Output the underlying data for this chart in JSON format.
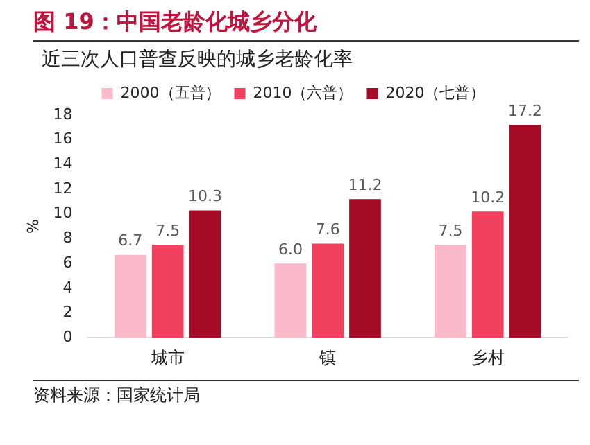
{
  "chart_data": {
    "type": "bar",
    "title": "图 19：中国老龄化城乡分化",
    "subtitle": "近三次人口普查反映的城乡老龄化率",
    "ylabel": "%",
    "categories": [
      "城市",
      "镇",
      "乡村"
    ],
    "series": [
      {
        "name": "2000（五普）",
        "color": "#f9b9c8",
        "values": [
          6.7,
          6.0,
          7.5
        ],
        "value_labels": [
          "6.7",
          "6.0",
          "7.5"
        ]
      },
      {
        "name": "2010（六普）",
        "color": "#f0405e",
        "values": [
          7.5,
          7.6,
          10.2
        ],
        "value_labels": [
          "7.5",
          "7.6",
          "10.2"
        ]
      },
      {
        "name": "2020（七普）",
        "color": "#a50a26",
        "values": [
          10.3,
          11.2,
          17.2
        ],
        "value_labels": [
          "10.3",
          "11.2",
          "17.2"
        ]
      }
    ],
    "ylim": [
      0,
      18
    ],
    "yticks": [
      0,
      2,
      4,
      6,
      8,
      10,
      12,
      14,
      16,
      18
    ],
    "grid": false,
    "legend": "top",
    "annotations": [
      "资料来源：国家统计局"
    ]
  }
}
